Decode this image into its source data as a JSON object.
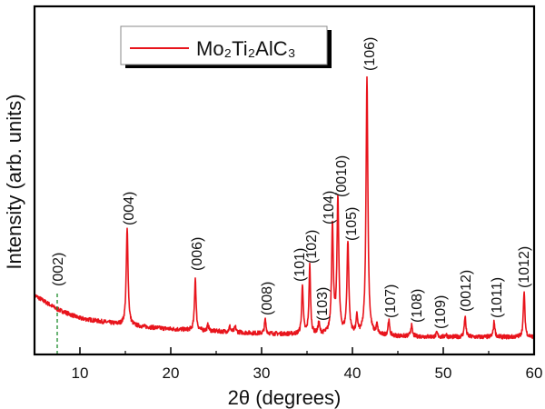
{
  "chart_data": {
    "type": "line",
    "title": "",
    "xlabel": "2θ (degrees)",
    "ylabel": "Intensity (arb. units)",
    "xlim": [
      5,
      60
    ],
    "ylim": [
      0,
      100
    ],
    "x_ticks": [
      "10",
      "20",
      "30",
      "40",
      "50",
      "60"
    ],
    "y_ticks": [],
    "grid": false,
    "legend": {
      "position": "top-left",
      "entries": [
        {
          "label": "Mo₂Ti₂AlC₃",
          "color": "#e8141c"
        }
      ]
    },
    "series": [
      {
        "name": "Mo₂Ti₂AlC₃",
        "color": "#e8141c",
        "baseline": [
          [
            5,
            17
          ],
          [
            7.5,
            13
          ],
          [
            10,
            10.4
          ],
          [
            15,
            8.4
          ],
          [
            20,
            7.3
          ],
          [
            30,
            6
          ],
          [
            40,
            5.5
          ],
          [
            50,
            5
          ],
          [
            60,
            5
          ]
        ],
        "peaks": [
          {
            "x": 15.2,
            "y": 36,
            "label": "(004)"
          },
          {
            "x": 22.7,
            "y": 22,
            "label": "(006)"
          },
          {
            "x": 24.1,
            "y": 8.5,
            "label": ""
          },
          {
            "x": 26.5,
            "y": 8,
            "label": ""
          },
          {
            "x": 27.1,
            "y": 8,
            "label": ""
          },
          {
            "x": 30.4,
            "y": 10,
            "label": "(008)"
          },
          {
            "x": 34.5,
            "y": 20,
            "label": "(101)"
          },
          {
            "x": 35.3,
            "y": 25.3,
            "label": "(102)"
          },
          {
            "x": 36.3,
            "y": 9,
            "label": "(103)"
          },
          {
            "x": 37.8,
            "y": 36.5,
            "label": "(104)"
          },
          {
            "x": 38.4,
            "y": 44.4,
            "label": "(0010)"
          },
          {
            "x": 39.5,
            "y": 32,
            "label": "(105)"
          },
          {
            "x": 40.5,
            "y": 10.4,
            "label": ""
          },
          {
            "x": 41.6,
            "y": 79.4,
            "label": "(106)"
          },
          {
            "x": 42.7,
            "y": 8,
            "label": ""
          },
          {
            "x": 44.0,
            "y": 9.7,
            "label": "(107)"
          },
          {
            "x": 46.5,
            "y": 8.4,
            "label": "(108)"
          },
          {
            "x": 49.3,
            "y": 6.2,
            "label": "(109)"
          },
          {
            "x": 50.3,
            "y": 5.8,
            "label": ""
          },
          {
            "x": 52.4,
            "y": 11,
            "label": "(0012)"
          },
          {
            "x": 55.6,
            "y": 9.4,
            "label": "(1011)"
          },
          {
            "x": 58.9,
            "y": 18,
            "label": "(1012)"
          }
        ]
      }
    ],
    "annotations": [
      {
        "x": 7.5,
        "label": "(002)",
        "style": "dashed",
        "color": "#1a8a2a"
      }
    ]
  }
}
